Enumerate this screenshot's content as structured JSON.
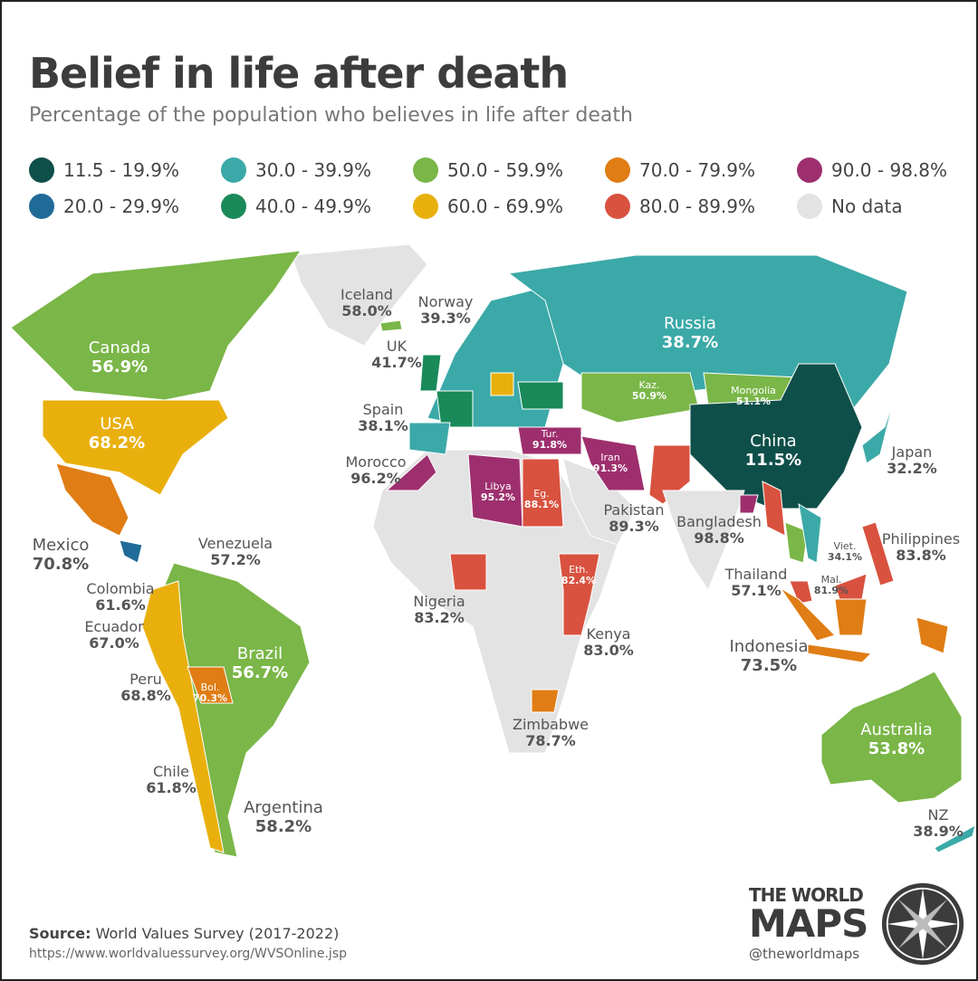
{
  "header": {
    "title": "Belief in life after death",
    "subtitle": "Percentage of the population who believes in life after death"
  },
  "legend": [
    {
      "label": "11.5 - 19.9%",
      "color": "#0f4f49"
    },
    {
      "label": "30.0 - 39.9%",
      "color": "#3ba9a8"
    },
    {
      "label": "50.0 - 59.9%",
      "color": "#7ab648"
    },
    {
      "label": "70.0 - 79.9%",
      "color": "#e07d14"
    },
    {
      "label": "90.0 - 98.8%",
      "color": "#9e2f6e"
    },
    {
      "label": "20.0 - 29.9%",
      "color": "#1f6b98"
    },
    {
      "label": "40.0 - 49.9%",
      "color": "#1a8a5a"
    },
    {
      "label": "60.0 - 69.9%",
      "color": "#e9b00d"
    },
    {
      "label": "80.0 - 89.9%",
      "color": "#d8523f"
    },
    {
      "label": "No data",
      "color": "#e3e3e3"
    }
  ],
  "map": {
    "labels": [
      {
        "name": "Iceland",
        "value": "58.0%"
      },
      {
        "name": "Norway",
        "value": "39.3%"
      },
      {
        "name": "Russia",
        "value": "38.7%"
      },
      {
        "name": "Canada",
        "value": "56.9%"
      },
      {
        "name": "UK",
        "value": "41.7%"
      },
      {
        "name": "Kaz.",
        "value": "50.9%"
      },
      {
        "name": "Mongolia",
        "value": "51.1%"
      },
      {
        "name": "USA",
        "value": "68.2%"
      },
      {
        "name": "Spain",
        "value": "38.1%"
      },
      {
        "name": "Tur.",
        "value": "91.8%"
      },
      {
        "name": "China",
        "value": "11.5%"
      },
      {
        "name": "Morocco",
        "value": "96.2%"
      },
      {
        "name": "Iran",
        "value": "91.3%"
      },
      {
        "name": "Japan",
        "value": "32.2%"
      },
      {
        "name": "Libya",
        "value": "95.2%"
      },
      {
        "name": "Eg.",
        "value": "88.1%"
      },
      {
        "name": "Pakistan",
        "value": "89.3%"
      },
      {
        "name": "Bangladesh",
        "value": "98.8%"
      },
      {
        "name": "Mexico",
        "value": "70.8%"
      },
      {
        "name": "Venezuela",
        "value": "57.2%"
      },
      {
        "name": "Viet.",
        "value": "34.1%"
      },
      {
        "name": "Philippines",
        "value": "83.8%"
      },
      {
        "name": "Eth.",
        "value": "82.4%"
      },
      {
        "name": "Thailand",
        "value": "57.1%"
      },
      {
        "name": "Mal.",
        "value": "81.9%"
      },
      {
        "name": "Colombia",
        "value": "61.6%"
      },
      {
        "name": "Nigeria",
        "value": "83.2%"
      },
      {
        "name": "Ecuador",
        "value": "67.0%"
      },
      {
        "name": "Kenya",
        "value": "83.0%"
      },
      {
        "name": "Indonesia",
        "value": "73.5%"
      },
      {
        "name": "Brazil",
        "value": "56.7%"
      },
      {
        "name": "Peru",
        "value": "68.8%"
      },
      {
        "name": "Bol.",
        "value": "70.3%"
      },
      {
        "name": "Zimbabwe",
        "value": "78.7%"
      },
      {
        "name": "Australia",
        "value": "53.8%"
      },
      {
        "name": "Chile",
        "value": "61.8%"
      },
      {
        "name": "Argentina",
        "value": "58.2%"
      },
      {
        "name": "NZ",
        "value": "38.9%"
      }
    ]
  },
  "footer": {
    "source_label": "Source:",
    "source": "World Values Survey (2017-2022)",
    "url": "https://www.worldvaluessurvey.org/WVSOnline.jsp"
  },
  "logo": {
    "line1": "THE WORLD",
    "line2": "MAPS",
    "handle": "@theworldmaps"
  }
}
